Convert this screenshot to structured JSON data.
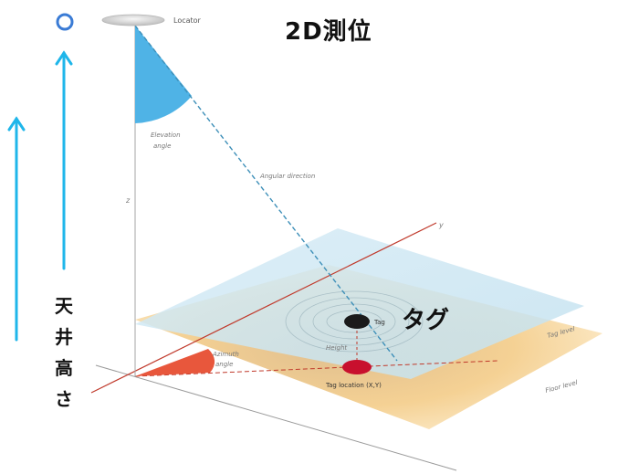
{
  "title": "2D測位",
  "tag_label_jp": "タグ",
  "ceiling_height_chars": [
    "天",
    "井",
    "高",
    "さ"
  ],
  "diagram": {
    "locator": "Locator",
    "elevation_angle": [
      "Elevation",
      "angle"
    ],
    "angular_direction": "Angular direction",
    "z_axis": "z",
    "y_axis": "y",
    "tag": "Tag",
    "height": "Height",
    "azimuth_angle": [
      "Azimuth",
      "angle"
    ],
    "tag_location": "Tag location (X,Y)",
    "tag_level": "Tag level",
    "floor_level": "Floor level"
  },
  "colors": {
    "arrow": "#1fb6ea",
    "circle": "#3a7bd5",
    "elevation_fill": "#4fb3e6",
    "tag_plane": "#cde6f2",
    "floor_plane": "#f3c981",
    "azimuth_fill": "#e8573c",
    "y_axis_line": "#c0392b",
    "tag": "#1b1b1b",
    "tag_projection": "#c8102e"
  }
}
